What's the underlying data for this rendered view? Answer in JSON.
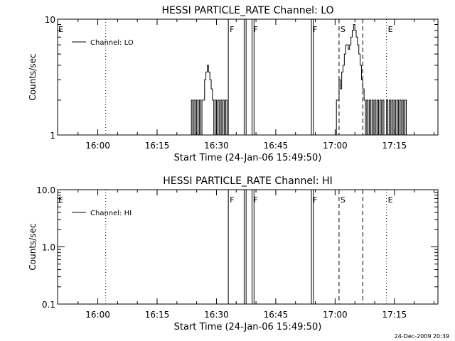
{
  "chart_data": [
    {
      "type": "line",
      "title": "HESSI PARTICLE_RATE Channel: LO",
      "xlabel": "Start Time (24-Jan-06 15:49:50)",
      "ylabel": "Counts/sec",
      "y_scale": "log",
      "xlim": [
        "15:50",
        "17:26"
      ],
      "ylim": [
        1,
        10
      ],
      "x_ticks": [
        "16:00",
        "16:15",
        "16:30",
        "16:45",
        "17:00",
        "17:15"
      ],
      "y_ticks": [
        "1",
        "10"
      ],
      "legend": {
        "entries": [
          "Channel: LO"
        ],
        "placement": "top-left"
      },
      "grid": false,
      "series": [
        {
          "name": "Channel: LO",
          "points": [
            {
              "x": "16:23:20",
              "y": 1
            },
            {
              "x": "16:23:40",
              "y": 2
            },
            {
              "x": "16:24:00",
              "y": 1
            },
            {
              "x": "16:24:20",
              "y": 2
            },
            {
              "x": "16:24:40",
              "y": 1
            },
            {
              "x": "16:25:00",
              "y": 2
            },
            {
              "x": "16:25:20",
              "y": 1
            },
            {
              "x": "16:25:40",
              "y": 2
            },
            {
              "x": "16:26:00",
              "y": 1
            },
            {
              "x": "16:26:20",
              "y": 2
            },
            {
              "x": "16:26:40",
              "y": 2
            },
            {
              "x": "16:27:00",
              "y": 3
            },
            {
              "x": "16:27:20",
              "y": 3.5
            },
            {
              "x": "16:27:40",
              "y": 4
            },
            {
              "x": "16:28:00",
              "y": 3.5
            },
            {
              "x": "16:28:20",
              "y": 3
            },
            {
              "x": "16:28:40",
              "y": 2.5
            },
            {
              "x": "16:29:00",
              "y": 2
            },
            {
              "x": "16:29:20",
              "y": 1
            },
            {
              "x": "16:29:40",
              "y": 2
            },
            {
              "x": "16:30:00",
              "y": 1
            },
            {
              "x": "16:30:20",
              "y": 2
            },
            {
              "x": "16:30:40",
              "y": 1
            },
            {
              "x": "16:31:00",
              "y": 2
            },
            {
              "x": "16:31:20",
              "y": 1
            },
            {
              "x": "16:31:40",
              "y": 2
            },
            {
              "x": "16:32:00",
              "y": 1
            },
            {
              "x": "16:32:20",
              "y": 2
            },
            {
              "x": "16:32:40",
              "y": 1
            },
            {
              "x": "17:00:00",
              "y": 1
            },
            {
              "x": "17:00:20",
              "y": 2
            },
            {
              "x": "17:00:40",
              "y": 2
            },
            {
              "x": "17:01:00",
              "y": 3
            },
            {
              "x": "17:01:20",
              "y": 2.5
            },
            {
              "x": "17:01:40",
              "y": 3.5
            },
            {
              "x": "17:02:00",
              "y": 4
            },
            {
              "x": "17:02:20",
              "y": 5
            },
            {
              "x": "17:02:40",
              "y": 6
            },
            {
              "x": "17:03:00",
              "y": 6
            },
            {
              "x": "17:03:20",
              "y": 5.5
            },
            {
              "x": "17:03:40",
              "y": 6
            },
            {
              "x": "17:04:00",
              "y": 7
            },
            {
              "x": "17:04:20",
              "y": 8
            },
            {
              "x": "17:04:40",
              "y": 9
            },
            {
              "x": "17:05:00",
              "y": 8
            },
            {
              "x": "17:05:20",
              "y": 7
            },
            {
              "x": "17:05:40",
              "y": 6
            },
            {
              "x": "17:06:00",
              "y": 5
            },
            {
              "x": "17:06:20",
              "y": 4
            },
            {
              "x": "17:06:40",
              "y": 3
            },
            {
              "x": "17:07:00",
              "y": 2.5
            },
            {
              "x": "17:07:20",
              "y": 2
            },
            {
              "x": "17:07:40",
              "y": 1
            },
            {
              "x": "17:08:00",
              "y": 2
            },
            {
              "x": "17:08:20",
              "y": 1
            },
            {
              "x": "17:08:40",
              "y": 2
            },
            {
              "x": "17:09:00",
              "y": 1
            },
            {
              "x": "17:09:20",
              "y": 2
            },
            {
              "x": "17:09:40",
              "y": 1
            },
            {
              "x": "17:10:00",
              "y": 2
            },
            {
              "x": "17:10:20",
              "y": 1
            },
            {
              "x": "17:10:40",
              "y": 2
            },
            {
              "x": "17:11:00",
              "y": 1
            },
            {
              "x": "17:11:20",
              "y": 2
            },
            {
              "x": "17:11:40",
              "y": 1
            },
            {
              "x": "17:12:00",
              "y": 2
            },
            {
              "x": "17:12:20",
              "y": 1
            },
            {
              "x": "17:13:00",
              "y": 2
            },
            {
              "x": "17:13:20",
              "y": 1
            },
            {
              "x": "17:13:40",
              "y": 2
            },
            {
              "x": "17:14:00",
              "y": 1
            },
            {
              "x": "17:14:20",
              "y": 2
            },
            {
              "x": "17:14:40",
              "y": 1
            },
            {
              "x": "17:15:00",
              "y": 2
            },
            {
              "x": "17:15:20",
              "y": 1
            },
            {
              "x": "17:15:40",
              "y": 2
            },
            {
              "x": "17:16:00",
              "y": 1
            },
            {
              "x": "17:16:20",
              "y": 2
            },
            {
              "x": "17:16:40",
              "y": 1
            },
            {
              "x": "17:17:00",
              "y": 2
            },
            {
              "x": "17:17:20",
              "y": 1
            },
            {
              "x": "17:17:40",
              "y": 2
            },
            {
              "x": "17:18:00",
              "y": 1
            }
          ]
        }
      ],
      "markers": [
        {
          "label": "E",
          "time": "15:50",
          "style": "none"
        },
        {
          "label": "",
          "time": "16:02",
          "style": "dotted"
        },
        {
          "label": "F",
          "time": "16:33",
          "style": "solid"
        },
        {
          "label": "",
          "time": "16:37",
          "style": "solid"
        },
        {
          "label": "",
          "time": "16:37:30",
          "style": "solid"
        },
        {
          "label": "F",
          "time": "16:39",
          "style": "solid"
        },
        {
          "label": "",
          "time": "16:39:30",
          "style": "solid"
        },
        {
          "label": "F",
          "time": "16:54",
          "style": "solid"
        },
        {
          "label": "",
          "time": "16:54:30",
          "style": "solid"
        },
        {
          "label": "S",
          "time": "17:01",
          "style": "dashed"
        },
        {
          "label": "",
          "time": "17:07",
          "style": "dashed"
        },
        {
          "label": "E",
          "time": "17:13",
          "style": "dotted"
        },
        {
          "label": "",
          "time": "17:26",
          "style": "dotted"
        }
      ]
    },
    {
      "type": "line",
      "title": "HESSI PARTICLE_RATE Channel: HI",
      "xlabel": "Start Time (24-Jan-06 15:49:50)",
      "ylabel": "Counts/sec",
      "y_scale": "log",
      "xlim": [
        "15:50",
        "17:26"
      ],
      "ylim": [
        0.1,
        10
      ],
      "x_ticks": [
        "16:00",
        "16:15",
        "16:30",
        "16:45",
        "17:00",
        "17:15"
      ],
      "y_ticks": [
        "10.0",
        "1.0",
        "0.1"
      ],
      "legend": {
        "entries": [
          "Channel: HI"
        ],
        "placement": "top-left"
      },
      "grid": false,
      "series": [
        {
          "name": "Channel: HI",
          "points": []
        }
      ],
      "markers": [
        {
          "label": "E",
          "time": "15:50",
          "style": "none"
        },
        {
          "label": "",
          "time": "16:02",
          "style": "dotted"
        },
        {
          "label": "F",
          "time": "16:33",
          "style": "solid"
        },
        {
          "label": "",
          "time": "16:37",
          "style": "solid"
        },
        {
          "label": "",
          "time": "16:37:30",
          "style": "solid"
        },
        {
          "label": "F",
          "time": "16:39",
          "style": "solid"
        },
        {
          "label": "",
          "time": "16:39:30",
          "style": "solid"
        },
        {
          "label": "F",
          "time": "16:54",
          "style": "solid"
        },
        {
          "label": "",
          "time": "16:54:30",
          "style": "solid"
        },
        {
          "label": "S",
          "time": "17:01",
          "style": "dashed"
        },
        {
          "label": "",
          "time": "17:07",
          "style": "dashed"
        },
        {
          "label": "E",
          "time": "17:13",
          "style": "dotted"
        },
        {
          "label": "",
          "time": "17:26",
          "style": "dotted"
        }
      ]
    }
  ],
  "footer": {
    "timestamp": "24-Dec-2009 20:39"
  }
}
